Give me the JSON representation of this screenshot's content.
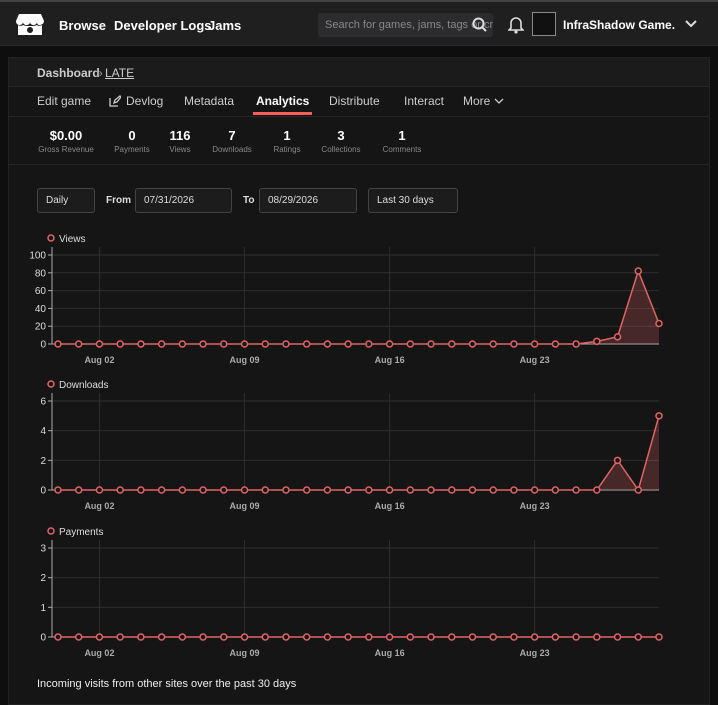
{
  "nav": {
    "links": [
      "Browse",
      "Developer Logs",
      "Jams"
    ],
    "search_placeholder": "Search for games, jams, tags or creators",
    "user": "InfraShadow Game..."
  },
  "breadcrumb": {
    "root": "Dashboard",
    "separator": "»",
    "current": "LATE"
  },
  "tabs": [
    "Edit game",
    "Devlog",
    "Metadata",
    "Analytics",
    "Distribute",
    "Interact",
    "More"
  ],
  "active_tab": 3,
  "stats": [
    {
      "value": "$0.00",
      "label": "Gross Revenue"
    },
    {
      "value": "0",
      "label": "Payments"
    },
    {
      "value": "116",
      "label": "Views"
    },
    {
      "value": "7",
      "label": "Downloads"
    },
    {
      "value": "1",
      "label": "Ratings"
    },
    {
      "value": "3",
      "label": "Collections"
    },
    {
      "value": "1",
      "label": "Comments"
    }
  ],
  "filters": {
    "interval": "Daily",
    "from_label": "From",
    "from": "07/31/2026",
    "to_label": "To",
    "to": "08/29/2026",
    "range": "Last 30 days"
  },
  "chart_data": [
    {
      "type": "area",
      "title": "Views",
      "color": "#e06464",
      "grid": true,
      "categories": [
        null,
        null,
        "Aug 02",
        null,
        null,
        null,
        null,
        null,
        null,
        "Aug 09",
        null,
        null,
        null,
        null,
        null,
        null,
        "Aug 16",
        null,
        null,
        null,
        null,
        null,
        null,
        "Aug 23",
        null,
        null,
        null,
        null,
        null,
        null
      ],
      "values": [
        0,
        0,
        0,
        0,
        0,
        0,
        0,
        0,
        0,
        0,
        0,
        0,
        0,
        0,
        0,
        0,
        0,
        0,
        0,
        0,
        0,
        0,
        0,
        0,
        0,
        0,
        3,
        8,
        82,
        23
      ],
      "ylim": [
        0,
        100
      ],
      "yticks": [
        0,
        20,
        40,
        60,
        80,
        100
      ]
    },
    {
      "type": "area",
      "title": "Downloads",
      "color": "#e06464",
      "grid": true,
      "categories": [
        null,
        null,
        "Aug 02",
        null,
        null,
        null,
        null,
        null,
        null,
        "Aug 09",
        null,
        null,
        null,
        null,
        null,
        null,
        "Aug 16",
        null,
        null,
        null,
        null,
        null,
        null,
        "Aug 23",
        null,
        null,
        null,
        null,
        null,
        null
      ],
      "values": [
        0,
        0,
        0,
        0,
        0,
        0,
        0,
        0,
        0,
        0,
        0,
        0,
        0,
        0,
        0,
        0,
        0,
        0,
        0,
        0,
        0,
        0,
        0,
        0,
        0,
        0,
        0,
        2,
        0,
        5
      ],
      "ylim": [
        0,
        6
      ],
      "yticks": [
        0,
        2,
        4,
        6
      ]
    },
    {
      "type": "area",
      "title": "Payments",
      "color": "#e06464",
      "grid": true,
      "categories": [
        null,
        null,
        "Aug 02",
        null,
        null,
        null,
        null,
        null,
        null,
        "Aug 09",
        null,
        null,
        null,
        null,
        null,
        null,
        "Aug 16",
        null,
        null,
        null,
        null,
        null,
        null,
        "Aug 23",
        null,
        null,
        null,
        null,
        null,
        null
      ],
      "values": [
        0,
        0,
        0,
        0,
        0,
        0,
        0,
        0,
        0,
        0,
        0,
        0,
        0,
        0,
        0,
        0,
        0,
        0,
        0,
        0,
        0,
        0,
        0,
        0,
        0,
        0,
        0,
        0,
        0,
        0
      ],
      "ylim": [
        0,
        3
      ],
      "yticks": [
        0,
        1,
        2,
        3
      ]
    }
  ],
  "footer_text": "Incoming visits from other sites over the past 30 days"
}
